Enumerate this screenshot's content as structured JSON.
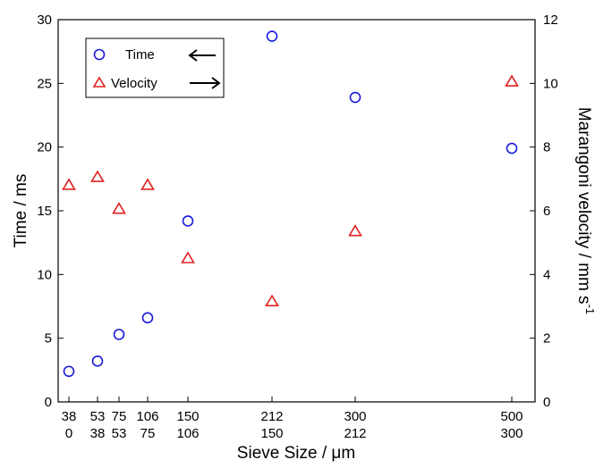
{
  "chart_data": {
    "type": "scatter",
    "xlabel": "Sieve Size / μm",
    "ylabel_left": "Time / ms",
    "ylabel_right": "Marangoni velocity / mm s",
    "ylabel_right_sup": "-1",
    "ylim_left": [
      0,
      30
    ],
    "ylim_right": [
      0,
      12
    ],
    "yticks_left": [
      "0",
      "5",
      "10",
      "15",
      "20",
      "25",
      "30"
    ],
    "yticks_right": [
      "0",
      "2",
      "4",
      "6",
      "8",
      "10",
      "12"
    ],
    "categories": [
      {
        "top": "38",
        "bottom": "0"
      },
      {
        "top": "53",
        "bottom": "38"
      },
      {
        "top": "75",
        "bottom": "53"
      },
      {
        "top": "106",
        "bottom": "75"
      },
      {
        "top": "150",
        "bottom": "106"
      },
      {
        "top": "212",
        "bottom": "150"
      },
      {
        "top": "300",
        "bottom": "212"
      },
      {
        "top": "500",
        "bottom": "300"
      }
    ],
    "grid": false,
    "legend_position": "top-left",
    "series": [
      {
        "name": "Time",
        "axis": "left",
        "marker": "circle",
        "color": "#1a1adb",
        "values": [
          2.4,
          3.2,
          5.3,
          6.6,
          14.2,
          28.7,
          23.9,
          19.9
        ]
      },
      {
        "name": "Velocity",
        "axis": "right",
        "marker": "triangle",
        "color": "#e02020",
        "values": [
          6.8,
          7.05,
          6.05,
          6.8,
          4.5,
          3.15,
          5.35,
          10.05
        ]
      }
    ]
  }
}
